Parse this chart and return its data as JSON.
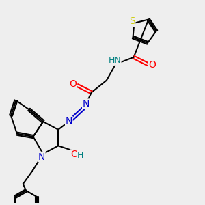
{
  "bg_color": "#eeeeee",
  "atom_colors": {
    "C": "#000000",
    "N": "#0000cc",
    "O": "#ff0000",
    "S": "#cccc00",
    "H": "#008080"
  },
  "line_color": "#000000",
  "line_width": 1.5,
  "font_size": 9
}
